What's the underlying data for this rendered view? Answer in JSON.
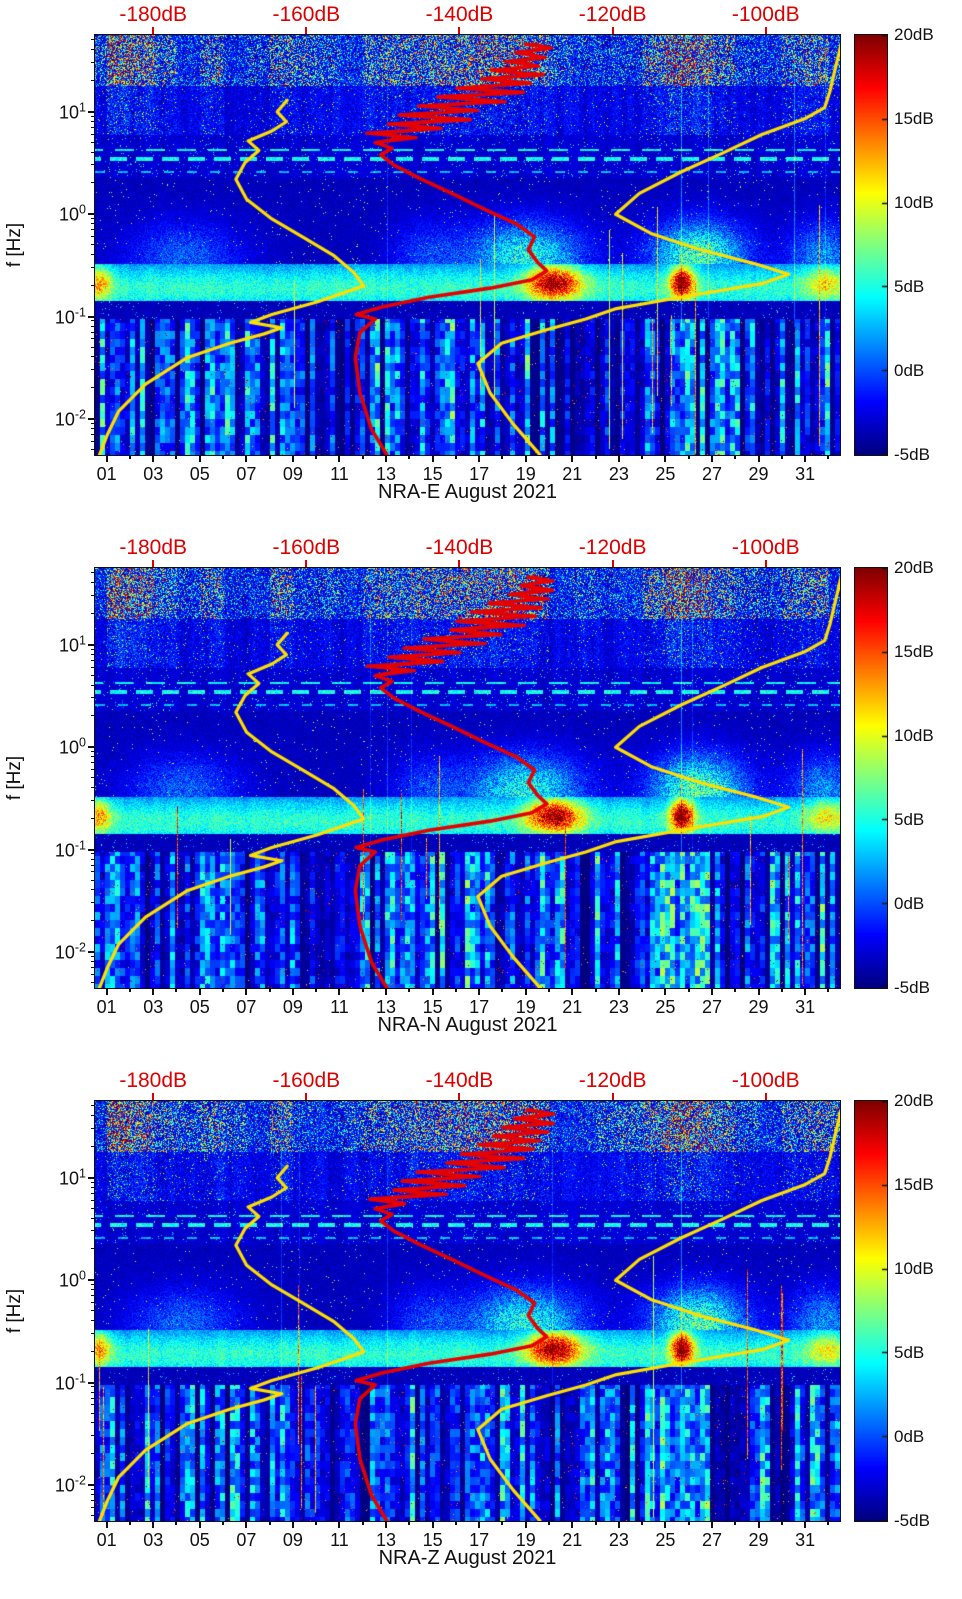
{
  "figure": {
    "ylabel": "f [Hz]",
    "panels": [
      {
        "id": "nra-e",
        "title": "NRA-E August 2021"
      },
      {
        "id": "nra-n",
        "title": "NRA-N August 2021"
      },
      {
        "id": "nra-z",
        "title": "NRA-Z August 2021"
      }
    ]
  },
  "chart_data": {
    "type": "heatmap",
    "subtype": "spectrogram",
    "panels": [
      {
        "component": "NRA-E",
        "title": "NRA-E August 2021"
      },
      {
        "component": "NRA-N",
        "title": "NRA-N August 2021"
      },
      {
        "component": "NRA-Z",
        "title": "NRA-Z August 2021"
      }
    ],
    "x_axis": {
      "domain": [
        0.5,
        32.5
      ],
      "ticks": [
        {
          "label": "01",
          "value": 1
        },
        {
          "label": "03",
          "value": 3
        },
        {
          "label": "05",
          "value": 5
        },
        {
          "label": "07",
          "value": 7
        },
        {
          "label": "09",
          "value": 9
        },
        {
          "label": "11",
          "value": 11
        },
        {
          "label": "13",
          "value": 13
        },
        {
          "label": "15",
          "value": 15
        },
        {
          "label": "17",
          "value": 17
        },
        {
          "label": "19",
          "value": 19
        },
        {
          "label": "21",
          "value": 21
        },
        {
          "label": "23",
          "value": 23
        },
        {
          "label": "25",
          "value": 25
        },
        {
          "label": "27",
          "value": 27
        },
        {
          "label": "29",
          "value": 29
        },
        {
          "label": "31",
          "value": 31
        }
      ]
    },
    "y_axis": {
      "label": "f [Hz]",
      "scale": "log",
      "domain_log": [
        -2.35,
        1.75
      ],
      "ticks": [
        {
          "base": "10",
          "exp": "1",
          "value": 10
        },
        {
          "base": "10",
          "exp": "0",
          "value": 1
        },
        {
          "base": "10",
          "exp": "-1",
          "value": 0.1
        },
        {
          "base": "10",
          "exp": "-2",
          "value": 0.01
        }
      ]
    },
    "top_axis": {
      "color": "#dd0000",
      "unit": "dB",
      "domain": [
        -187.6,
        -90.3
      ],
      "ticks": [
        {
          "label": "-180dB",
          "value": -180
        },
        {
          "label": "-160dB",
          "value": -160
        },
        {
          "label": "-140dB",
          "value": -140
        },
        {
          "label": "-120dB",
          "value": -120
        },
        {
          "label": "-100dB",
          "value": -100
        }
      ]
    },
    "colorbar": {
      "colormap": "jet",
      "min": -5,
      "max": 20,
      "ticks": [
        {
          "label": "20dB",
          "value": 20
        },
        {
          "label": "15dB",
          "value": 15
        },
        {
          "label": "10dB",
          "value": 10
        },
        {
          "label": "5dB",
          "value": 5
        },
        {
          "label": "0dB",
          "value": 0
        },
        {
          "label": "-5dB",
          "value": -5
        }
      ]
    },
    "curves": {
      "yellow_low_noise_model": {
        "color": "#ffdf00",
        "points_f_db": [
          [
            0.0045,
            -187
          ],
          [
            0.007,
            -186
          ],
          [
            0.012,
            -184.5
          ],
          [
            0.022,
            -181
          ],
          [
            0.04,
            -175.5
          ],
          [
            0.055,
            -170
          ],
          [
            0.068,
            -165.5
          ],
          [
            0.078,
            -163.2
          ],
          [
            0.088,
            -167.3
          ],
          [
            0.105,
            -164.5
          ],
          [
            0.14,
            -158.5
          ],
          [
            0.2,
            -152.5
          ],
          [
            0.27,
            -153.8
          ],
          [
            0.4,
            -156.5
          ],
          [
            0.6,
            -160.5
          ],
          [
            0.9,
            -164.5
          ],
          [
            1.4,
            -167.8
          ],
          [
            2.2,
            -169.2
          ],
          [
            3.2,
            -168
          ],
          [
            4.2,
            -166.2
          ],
          [
            5.2,
            -167.6
          ],
          [
            6.5,
            -164.5
          ],
          [
            8,
            -162.6
          ],
          [
            10,
            -163.8
          ],
          [
            13,
            -162.5
          ]
        ]
      },
      "yellow_high_noise_model": {
        "color": "#ffdf00",
        "points_f_db": [
          [
            0.0045,
            -129.5
          ],
          [
            0.009,
            -133
          ],
          [
            0.018,
            -136
          ],
          [
            0.035,
            -137.6
          ],
          [
            0.055,
            -134.5
          ],
          [
            0.075,
            -128.5
          ],
          [
            0.095,
            -123.5
          ],
          [
            0.12,
            -119.5
          ],
          [
            0.16,
            -110
          ],
          [
            0.21,
            -100.5
          ],
          [
            0.26,
            -97
          ],
          [
            0.33,
            -101.5
          ],
          [
            0.45,
            -108.5
          ],
          [
            0.65,
            -115
          ],
          [
            1,
            -119.6
          ],
          [
            1.6,
            -116.5
          ],
          [
            2.6,
            -111
          ],
          [
            4,
            -105.5
          ],
          [
            6,
            -100.5
          ],
          [
            8.5,
            -95
          ],
          [
            11,
            -92.3
          ],
          [
            16,
            -91.6
          ],
          [
            25,
            -91
          ],
          [
            38,
            -90.4
          ],
          [
            52,
            -90
          ]
        ]
      },
      "red_station_spectrum": {
        "color": "#e60000",
        "points_f_db": [
          [
            0.0045,
            -149.5
          ],
          [
            0.008,
            -151.5
          ],
          [
            0.018,
            -153
          ],
          [
            0.04,
            -153.6
          ],
          [
            0.07,
            -153
          ],
          [
            0.095,
            -151
          ],
          [
            0.105,
            -153.5
          ],
          [
            0.125,
            -150
          ],
          [
            0.155,
            -144
          ],
          [
            0.19,
            -136
          ],
          [
            0.23,
            -130.5
          ],
          [
            0.28,
            -128.6
          ],
          [
            0.34,
            -129.8
          ],
          [
            0.45,
            -131
          ],
          [
            0.6,
            -130.2
          ],
          [
            0.8,
            -132.5
          ],
          [
            1.1,
            -136.5
          ],
          [
            1.6,
            -141
          ],
          [
            2.2,
            -145
          ],
          [
            3,
            -148.5
          ],
          [
            3.8,
            -150.3
          ],
          [
            4.4,
            -148.8
          ],
          [
            5,
            -151
          ],
          [
            5.6,
            -146.5
          ],
          [
            6.2,
            -151.5
          ],
          [
            6.9,
            -142.5
          ],
          [
            7.6,
            -149.5
          ],
          [
            8.4,
            -139.5
          ],
          [
            9.3,
            -147
          ],
          [
            10.3,
            -137
          ],
          [
            11.4,
            -144.5
          ],
          [
            12.6,
            -134.5
          ],
          [
            14,
            -142
          ],
          [
            15.5,
            -132.5
          ],
          [
            17,
            -139.5
          ],
          [
            19,
            -131
          ],
          [
            21,
            -137.5
          ],
          [
            23,
            -129.5
          ],
          [
            25.5,
            -135.5
          ],
          [
            28,
            -128.8
          ],
          [
            31,
            -133.5
          ],
          [
            34,
            -128.3
          ],
          [
            38,
            -132
          ],
          [
            42,
            -128.6
          ],
          [
            46,
            -130.5
          ]
        ]
      }
    },
    "features": {
      "microseism_band_hz": [
        0.15,
        0.35
      ],
      "bright_events": [
        {
          "days": [
            19,
            21.5
          ],
          "f_hz": [
            0.15,
            0.35
          ]
        },
        {
          "days": [
            25,
            26.5
          ],
          "f_hz": [
            0.15,
            0.35
          ]
        },
        {
          "days": [
            0.5,
            1.5
          ],
          "f_hz": [
            0.15,
            0.3
          ]
        }
      ],
      "noisy_high_band_hz": [
        18,
        56
      ]
    }
  }
}
